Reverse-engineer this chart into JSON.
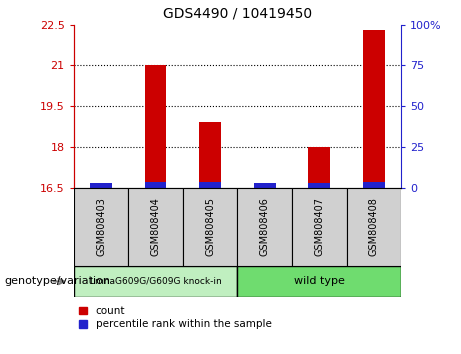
{
  "title": "GDS4490 / 10419450",
  "samples": [
    "GSM808403",
    "GSM808404",
    "GSM808405",
    "GSM808406",
    "GSM808407",
    "GSM808408"
  ],
  "red_values": [
    16.63,
    21.0,
    18.9,
    16.63,
    18.0,
    22.3
  ],
  "blue_values": [
    16.67,
    16.72,
    16.7,
    16.67,
    16.66,
    16.72
  ],
  "base_value": 16.5,
  "ylim": [
    16.5,
    22.5
  ],
  "yticks_left": [
    16.5,
    18.0,
    19.5,
    21.0,
    22.5
  ],
  "yticks_right": [
    0,
    25,
    50,
    75,
    100
  ],
  "group1_label": "LmnaG609G/G609G knock-in",
  "group2_label": "wild type",
  "group1_color": "#c0efc0",
  "group2_color": "#6fdc6f",
  "sample_box_color": "#d0d0d0",
  "red_bar_color": "#cc0000",
  "blue_bar_color": "#2222cc",
  "bar_width": 0.4,
  "xlabel": "genotype/variation",
  "legend_count": "count",
  "legend_pct": "percentile rank within the sample",
  "left_axis_color": "#cc0000",
  "right_axis_color": "#2222cc"
}
